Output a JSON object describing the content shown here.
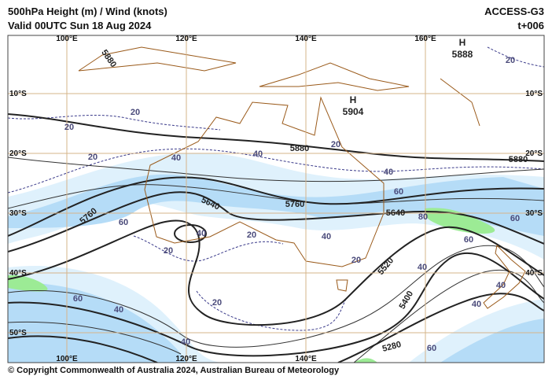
{
  "header": {
    "title": "500hPa Height (m) / Wind (knots)",
    "valid": "Valid 00UTC Sun 18 Aug 2024",
    "model": "ACCESS-G3",
    "lead": "t+006"
  },
  "map": {
    "lon_labels_top": [
      "100°E",
      "120°E",
      "140°E",
      "160°E"
    ],
    "lon_labels_bottom": [
      "100°E",
      "120°E",
      "140°E"
    ],
    "lat_labels_left": [
      "10°S",
      "20°S",
      "30°S",
      "40°S",
      "50°S"
    ],
    "lat_labels_right": [
      "10°S",
      "20°S",
      "30°S",
      "40°S"
    ],
    "highs": [
      {
        "symbol": "H",
        "value": 5888
      },
      {
        "symbol": "H",
        "value": 5904
      }
    ],
    "height_labels": [
      5880,
      5880,
      5880,
      5760,
      5760,
      5640,
      5640,
      5520,
      5400,
      5280
    ],
    "wind_labels": [
      20,
      20,
      20,
      40,
      40,
      20,
      40,
      60,
      80,
      60,
      60,
      40,
      40,
      40,
      60,
      40,
      20,
      20,
      40,
      20,
      20,
      60,
      40,
      40,
      60,
      20
    ]
  },
  "footer": "© Copyright Commonwealth of Australia 2024, Australian Bureau of Meteorology"
}
